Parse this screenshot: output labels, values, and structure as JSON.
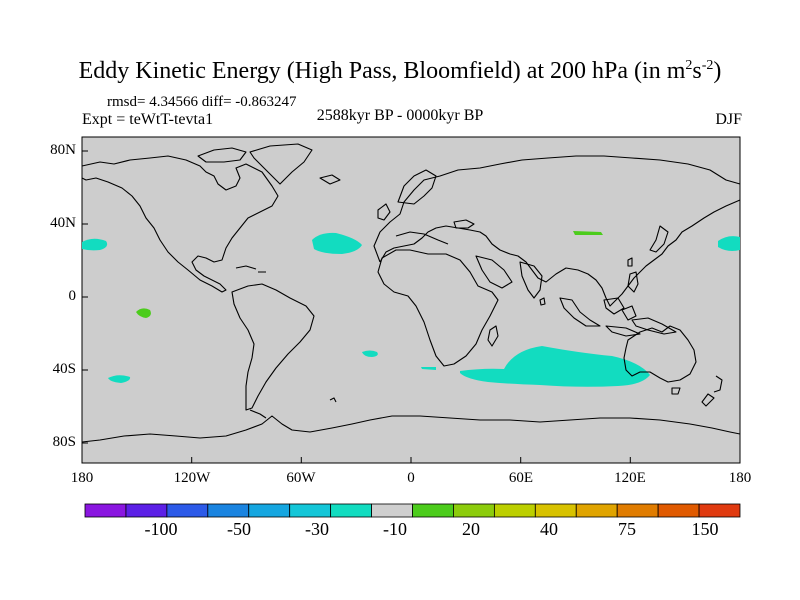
{
  "title": {
    "main": "Eddy Kinetic Energy (High Pass, Bloomfield) at 200 hPa (in m",
    "unit_exp1": "2",
    "unit_s": "s",
    "unit_exp2": "-2",
    "close": ")"
  },
  "stats": "rmsd= 4.34566 diff= -0.863247",
  "experiment": "Expt = teWtT-tevta1",
  "period": "2588kyr BP - 0000kyr BP",
  "season": "DJF",
  "axes": {
    "lat_ticks": [
      "80N",
      "40N",
      "0",
      "40S",
      "80S"
    ],
    "lon_ticks": [
      "180",
      "120W",
      "60W",
      "0",
      "60E",
      "120E",
      "180"
    ]
  },
  "colorbar": {
    "colors": [
      "#8a16e0",
      "#5c20e6",
      "#2c5ae8",
      "#1a84e0",
      "#15a6e0",
      "#14c6d8",
      "#12dcc0",
      "#cfcfcf",
      "#4ccc1c",
      "#8ccc0c",
      "#bccf00",
      "#d8c200",
      "#e0a400",
      "#e07c00",
      "#e05a00",
      "#e03a10"
    ],
    "labels": [
      "-100",
      "-50",
      "-30",
      "-10",
      "20",
      "40",
      "75",
      "150"
    ]
  },
  "colors": {
    "land_sea_fill": "#cdcdcd",
    "negative_fill": "#12dcc0",
    "positive_fill": "#4ccc1c",
    "coast": "#000000"
  }
}
